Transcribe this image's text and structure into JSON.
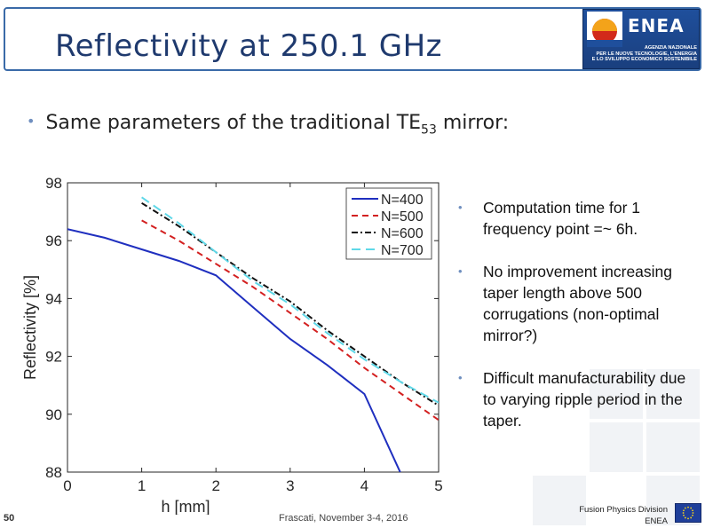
{
  "slide": {
    "title": "Reflectivity at 250.1 GHz",
    "main_bullet": {
      "text": "Same parameters of the traditional TE",
      "sub": "53",
      "suffix": " mirror:"
    },
    "right_bullets": [
      "Computation time for 1 frequency point =~ 6h.",
      "No improvement increasing taper length above 500 corrugations (non-optimal mirror?)",
      "Difficult manufacturability due to varying ripple period in the taper."
    ],
    "footer": {
      "page_number": "50",
      "date_text": "Frascati, November 3-4, 2016",
      "division_line1": "Fusion Physics Division",
      "division_line2": "ENEA"
    },
    "logo": {
      "name": "ENEA",
      "line1": "AGENZIA NAZIONALE",
      "line2": "PER LE NUOVE TECNOLOGIE, L'ENERGIA",
      "line3": "E LO SVILUPPO ECONOMICO SOSTENIBILE"
    }
  },
  "chart_data": {
    "type": "line",
    "title": "",
    "xlabel": "h [mm]",
    "ylabel": "Reflectivity [%]",
    "xlim": [
      0,
      5
    ],
    "ylim": [
      88,
      98
    ],
    "xticks": [
      0,
      1,
      2,
      3,
      4,
      5
    ],
    "yticks": [
      88,
      90,
      92,
      94,
      96,
      98
    ],
    "grid": false,
    "legend_position": "top-right",
    "series": [
      {
        "name": "N=400",
        "color": "#1f2fbf",
        "dash": "solid",
        "x": [
          0,
          0.5,
          1,
          1.5,
          2,
          2.5,
          3,
          3.5,
          4,
          4.5
        ],
        "y": [
          96.4,
          96.1,
          95.7,
          95.3,
          94.8,
          93.7,
          92.6,
          91.7,
          90.7,
          87.9
        ]
      },
      {
        "name": "N=500",
        "color": "#d32020",
        "dash": "dashed",
        "x": [
          1,
          1.5,
          2,
          2.5,
          3,
          3.5,
          4,
          4.5,
          5
        ],
        "y": [
          96.7,
          96.0,
          95.2,
          94.4,
          93.5,
          92.6,
          91.6,
          90.7,
          89.8
        ]
      },
      {
        "name": "N=600",
        "color": "#111111",
        "dash": "dashdot",
        "x": [
          1,
          1.5,
          2,
          2.5,
          3,
          3.5,
          4,
          4.5,
          5
        ],
        "y": [
          97.3,
          96.5,
          95.6,
          94.7,
          93.9,
          92.9,
          92.0,
          91.1,
          90.3
        ]
      },
      {
        "name": "N=700",
        "color": "#5fd8e8",
        "dash": "longdash",
        "x": [
          1,
          1.5,
          2,
          2.5,
          3,
          3.5,
          4,
          4.5,
          5
        ],
        "y": [
          97.5,
          96.6,
          95.6,
          94.6,
          93.8,
          92.8,
          91.9,
          91.1,
          90.4
        ]
      }
    ]
  }
}
